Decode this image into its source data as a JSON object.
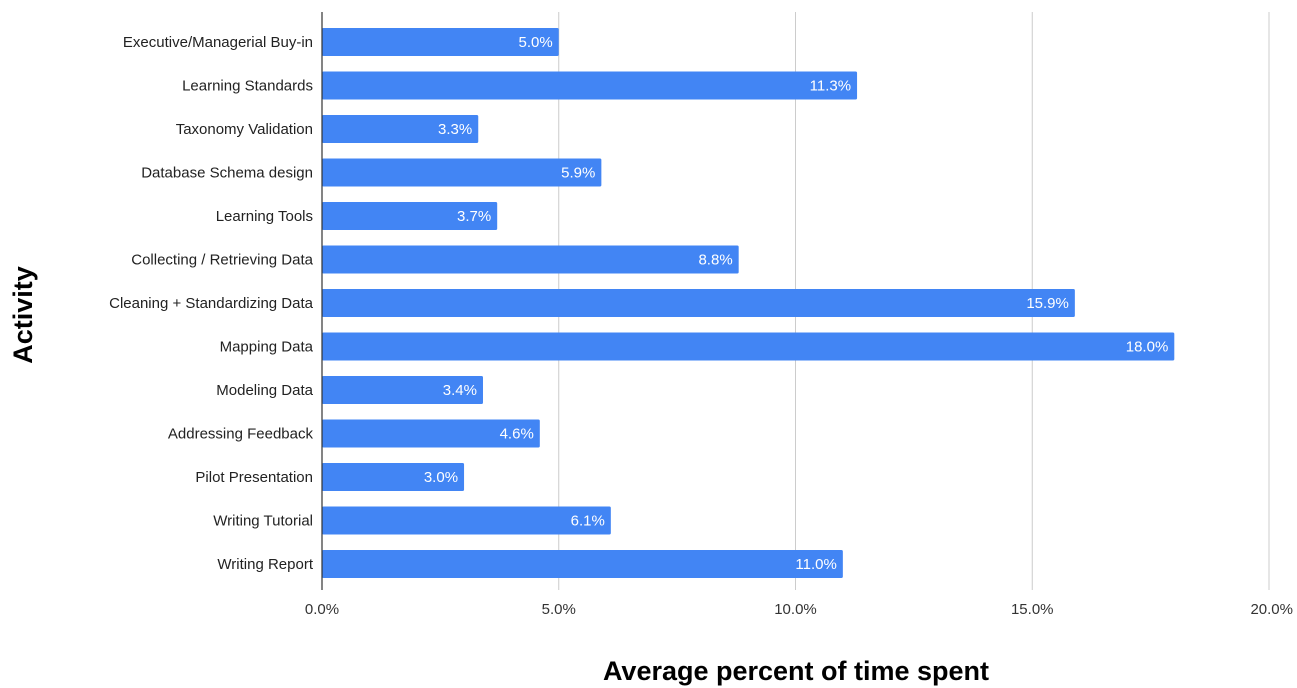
{
  "chart_data": {
    "type": "bar",
    "orientation": "horizontal",
    "categories": [
      "Executive/Managerial Buy-in",
      "Learning Standards",
      "Taxonomy Validation",
      "Database Schema design",
      "Learning Tools",
      "Collecting / Retrieving Data",
      "Cleaning + Standardizing Data",
      "Mapping Data",
      "Modeling Data",
      "Addressing Feedback",
      "Pilot Presentation",
      "Writing Tutorial",
      "Writing Report"
    ],
    "values": [
      5.0,
      11.3,
      3.3,
      5.9,
      3.7,
      8.8,
      15.9,
      18.0,
      3.4,
      4.6,
      3.0,
      6.1,
      11.0
    ],
    "value_labels": [
      "5.0%",
      "11.3%",
      "3.3%",
      "5.9%",
      "3.7%",
      "8.8%",
      "15.9%",
      "18.0%",
      "3.4%",
      "4.6%",
      "3.0%",
      "6.1%",
      "11.0%"
    ],
    "xlim": [
      0,
      20
    ],
    "xticks": [
      0,
      5,
      10,
      15,
      20
    ],
    "xtick_labels": [
      "0.0%",
      "5.0%",
      "10.0%",
      "15.0%",
      "20.0%"
    ],
    "xlabel": "Average percent of time spent",
    "ylabel": "Activity",
    "title": "",
    "grid": "vertical",
    "legend": "none",
    "bar_color": "#4285f4"
  }
}
